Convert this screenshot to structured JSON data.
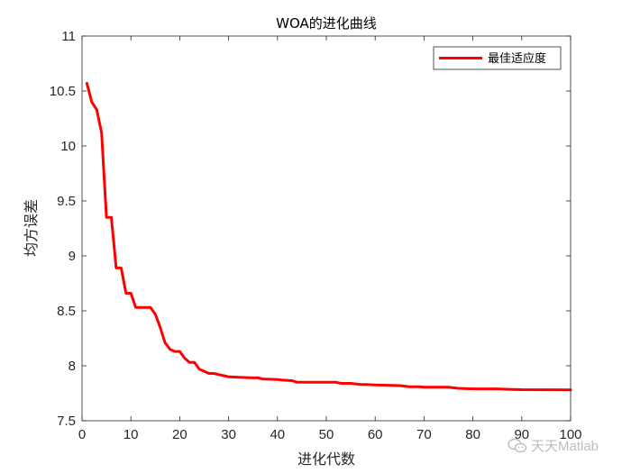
{
  "chart_data": {
    "type": "line",
    "title": "WOA的进化曲线",
    "xlabel": "进化代数",
    "ylabel": "均方误差",
    "xlim": [
      0,
      100
    ],
    "ylim": [
      7.5,
      11
    ],
    "xticks": [
      0,
      10,
      20,
      30,
      40,
      50,
      60,
      70,
      80,
      90,
      100
    ],
    "yticks": [
      7.5,
      8,
      8.5,
      9,
      9.5,
      10,
      10.5,
      11
    ],
    "grid": false,
    "legend": {
      "position": "top-right",
      "entries": [
        "最佳适应度"
      ]
    },
    "series": [
      {
        "name": "最佳适应度",
        "color": "#ff0000",
        "x": [
          1,
          2,
          3,
          4,
          5,
          6,
          7,
          8,
          9,
          10,
          11,
          12,
          13,
          14,
          15,
          16,
          17,
          18,
          19,
          20,
          21,
          22,
          23,
          24,
          25,
          26,
          27,
          28,
          29,
          30,
          32,
          35,
          36,
          37,
          40,
          41,
          43,
          44,
          46,
          50,
          52,
          53,
          55,
          57,
          58,
          60,
          65,
          67,
          69,
          70,
          75,
          77,
          80,
          85,
          88,
          90,
          95,
          100
        ],
        "y": [
          10.57,
          10.4,
          10.33,
          10.12,
          9.35,
          9.35,
          8.89,
          8.89,
          8.66,
          8.66,
          8.53,
          8.53,
          8.53,
          8.53,
          8.47,
          8.35,
          8.21,
          8.15,
          8.13,
          8.13,
          8.07,
          8.03,
          8.03,
          7.97,
          7.95,
          7.93,
          7.93,
          7.92,
          7.91,
          7.9,
          7.895,
          7.89,
          7.89,
          7.88,
          7.875,
          7.87,
          7.865,
          7.85,
          7.85,
          7.85,
          7.85,
          7.84,
          7.84,
          7.83,
          7.83,
          7.825,
          7.82,
          7.81,
          7.81,
          7.805,
          7.805,
          7.795,
          7.79,
          7.79,
          7.785,
          7.783,
          7.782,
          7.78
        ]
      }
    ]
  },
  "watermark": {
    "text": "天天Matlab",
    "icon": "wechat-icon"
  }
}
